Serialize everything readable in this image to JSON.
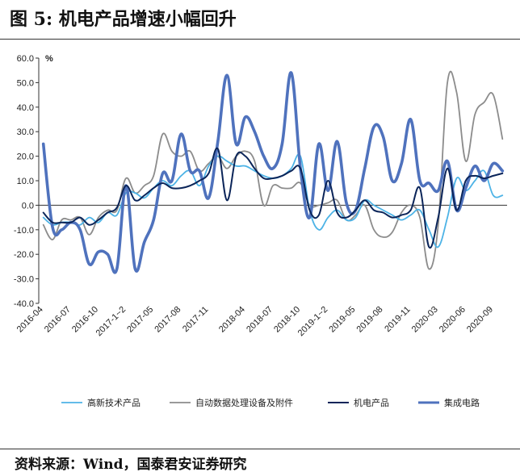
{
  "title": "图 5: 机电产品增速小幅回升",
  "source": "资料来源：Wind，国泰君安证券研究",
  "chart_data": {
    "type": "line",
    "unit": "%",
    "ylim": [
      -40,
      60
    ],
    "yticks": [
      "60.0",
      "50.0",
      "40.0",
      "30.0",
      "20.0",
      "10.0",
      "0.0",
      "-10.0",
      "-20.0",
      "-30.0",
      "-40.0"
    ],
    "xtick_labels": [
      "2016-04",
      "2016-07",
      "2016-10",
      "2017-1~2",
      "2017-05",
      "2017-08",
      "2017-11",
      "2018-04",
      "2018-07",
      "2018-10",
      "2019-1~2",
      "2019-05",
      "2019-08",
      "2019-11",
      "2020-03",
      "2020-06",
      "2020-09"
    ],
    "categories": [
      "2016-04",
      "2016-05",
      "2016-06",
      "2016-07",
      "2016-08",
      "2016-09",
      "2016-10",
      "2016-11",
      "2016-12",
      "2017-1~2",
      "2017-03",
      "2017-04",
      "2017-05",
      "2017-06",
      "2017-07",
      "2017-08",
      "2017-09",
      "2017-10",
      "2017-11",
      "2017-12",
      "2018-1~2",
      "2018-03",
      "2018-04",
      "2018-05",
      "2018-06",
      "2018-07",
      "2018-08",
      "2018-09",
      "2018-10",
      "2018-11",
      "2018-12",
      "2019-1~2",
      "2019-03",
      "2019-04",
      "2019-05",
      "2019-06",
      "2019-07",
      "2019-08",
      "2019-09",
      "2019-10",
      "2019-11",
      "2019-12",
      "2020-1~2",
      "2020-03",
      "2020-04",
      "2020-05",
      "2020-06",
      "2020-07",
      "2020-08",
      "2020-09",
      "2020-10"
    ],
    "series": [
      {
        "name": "高新技术产品",
        "color": "#4db3e6",
        "width": 1.8,
        "values": [
          -5,
          -8,
          -7,
          -7,
          -8,
          -5,
          -7,
          -3,
          -4,
          5,
          5,
          3,
          7,
          10,
          8,
          12,
          14,
          8,
          16,
          20,
          18,
          16,
          16,
          14,
          12,
          11,
          12,
          15,
          20,
          -2,
          -10,
          -5,
          -2,
          -6,
          -5,
          2,
          0,
          -2,
          -4,
          -6,
          -4,
          -2,
          -10,
          -17,
          -5,
          11,
          6,
          10,
          14,
          4,
          4
        ]
      },
      {
        "name": "自动数据处理设备及附件",
        "color": "#8c8c8c",
        "width": 1.8,
        "values": [
          -8,
          -14,
          -6,
          -6,
          -5,
          -12,
          -5,
          -2,
          -2,
          11,
          5,
          8,
          12,
          29,
          22,
          20,
          22,
          14,
          17,
          20,
          15,
          20,
          22,
          18,
          0,
          8,
          7,
          7,
          9,
          0,
          0,
          1,
          2,
          -6,
          -4,
          0,
          -10,
          -13,
          -11,
          -3,
          0,
          -5,
          -26,
          -8,
          50,
          46,
          18,
          37,
          42,
          45,
          27
        ]
      },
      {
        "name": "机电产品",
        "color": "#0b2559",
        "width": 2.0,
        "values": [
          -3,
          -7,
          -7,
          -7,
          -5,
          -8,
          -6,
          -3,
          -1,
          8,
          2,
          4,
          7,
          9,
          7,
          7,
          8,
          10,
          13,
          23,
          2,
          20,
          20,
          15,
          11,
          11,
          12,
          14,
          15,
          -2,
          -4,
          10,
          -3,
          -5,
          -2,
          2,
          -2,
          -3,
          -5,
          -4,
          -2,
          7,
          -17,
          -5,
          15,
          -2,
          10,
          12,
          11,
          12,
          13
        ]
      },
      {
        "name": "集成电路",
        "color": "#4f72bd",
        "width": 3.6,
        "values": [
          25,
          -9,
          -10,
          -7,
          -10,
          -24,
          -19,
          -20,
          -26,
          8,
          -26,
          -15,
          -6,
          13,
          10,
          29,
          14,
          14,
          3,
          26,
          53,
          25,
          36,
          30,
          20,
          15,
          25,
          54,
          15,
          -5,
          25,
          6,
          26,
          1,
          -2,
          15,
          32,
          28,
          10,
          17,
          35,
          10,
          9,
          6,
          18,
          -2,
          7,
          16,
          10,
          17,
          14
        ]
      }
    ]
  }
}
